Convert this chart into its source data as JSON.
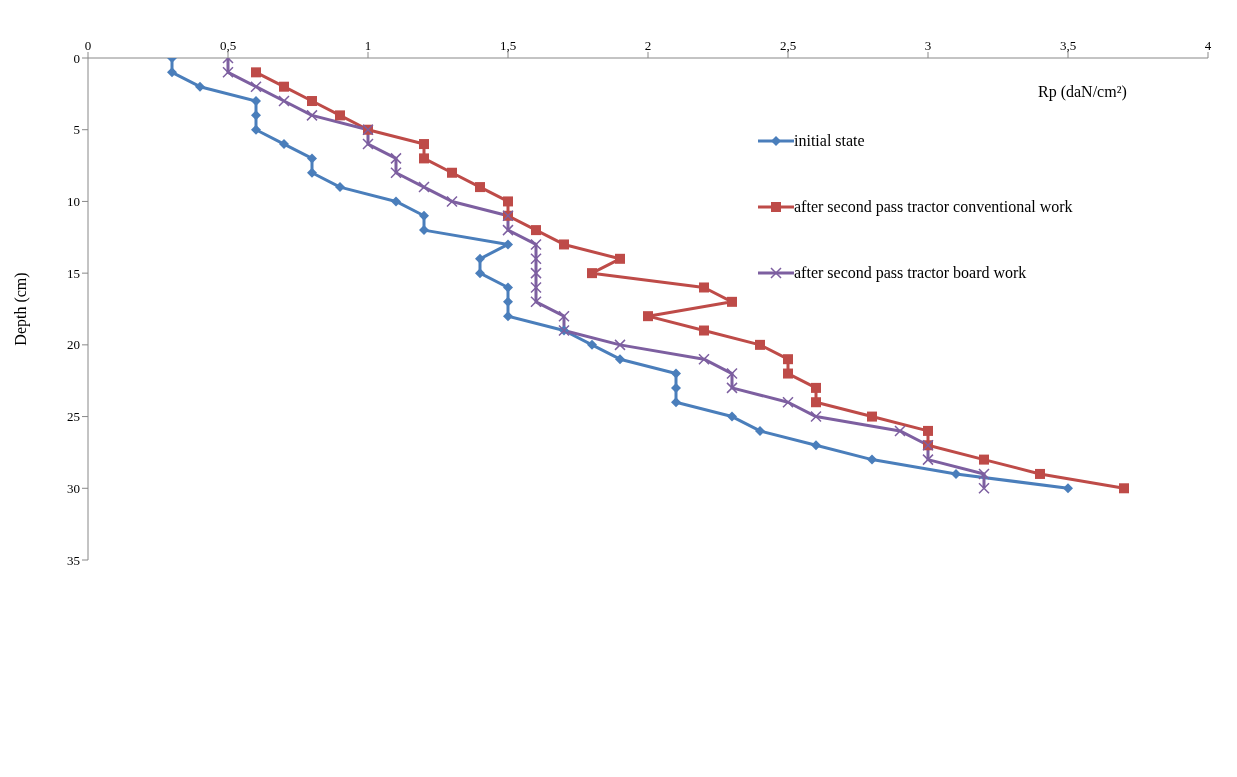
{
  "chart_data": {
    "type": "line",
    "orientation": "horizontal",
    "xlabel": "Rp (daN/cm²)",
    "ylabel": "Depth (cm)",
    "x": [
      0,
      1,
      2,
      3,
      4,
      5,
      6,
      7,
      8,
      9,
      10,
      11,
      12,
      13,
      14,
      15,
      16,
      17,
      18,
      19,
      20,
      21,
      22,
      23,
      24,
      25,
      26,
      27,
      28,
      29,
      30
    ],
    "series": [
      {
        "name": "initial state",
        "color": "#4a7ebb",
        "marker": "diamond",
        "values": [
          0.3,
          0.3,
          0.4,
          0.6,
          0.6,
          0.6,
          0.7,
          0.8,
          0.8,
          0.9,
          1.1,
          1.2,
          1.2,
          1.5,
          1.4,
          1.4,
          1.5,
          1.5,
          1.5,
          1.7,
          1.8,
          1.9,
          2.1,
          2.1,
          2.1,
          2.3,
          2.4,
          2.6,
          2.8,
          3.1,
          3.5
        ]
      },
      {
        "name": "after second pass tractor conventional work",
        "color": "#be4b48",
        "marker": "square",
        "values": [
          null,
          0.6,
          0.7,
          0.8,
          0.9,
          1.0,
          1.2,
          1.2,
          1.3,
          1.4,
          1.5,
          1.5,
          1.6,
          1.7,
          1.9,
          1.8,
          2.2,
          2.3,
          2.0,
          2.2,
          2.4,
          2.5,
          2.5,
          2.6,
          2.6,
          2.8,
          3.0,
          3.0,
          3.2,
          3.4,
          3.7
        ]
      },
      {
        "name": "after second pass tractor board work",
        "color": "#7d5fa0",
        "marker": "cross",
        "values": [
          0.5,
          0.5,
          0.6,
          0.7,
          0.8,
          1.0,
          1.0,
          1.1,
          1.1,
          1.2,
          1.3,
          1.5,
          1.5,
          1.6,
          1.6,
          1.6,
          1.6,
          1.6,
          1.7,
          1.7,
          1.9,
          2.2,
          2.3,
          2.3,
          2.5,
          2.6,
          2.9,
          3.0,
          3.0,
          3.2,
          3.2
        ]
      }
    ],
    "xlim": [
      0,
      4
    ],
    "xticks": [
      0,
      {
        "value": 0.5,
        "label": "0,5"
      },
      1,
      {
        "value": 1.5,
        "label": "1,5"
      },
      2,
      {
        "value": 2.5,
        "label": "2,5"
      },
      3,
      {
        "value": 3.5,
        "label": "3,5"
      },
      4
    ],
    "ylim": [
      35,
      0
    ],
    "yticks": [
      0,
      5,
      10,
      15,
      20,
      25,
      30,
      35
    ],
    "grid": false,
    "legend": "top right",
    "line_style": "solid"
  }
}
